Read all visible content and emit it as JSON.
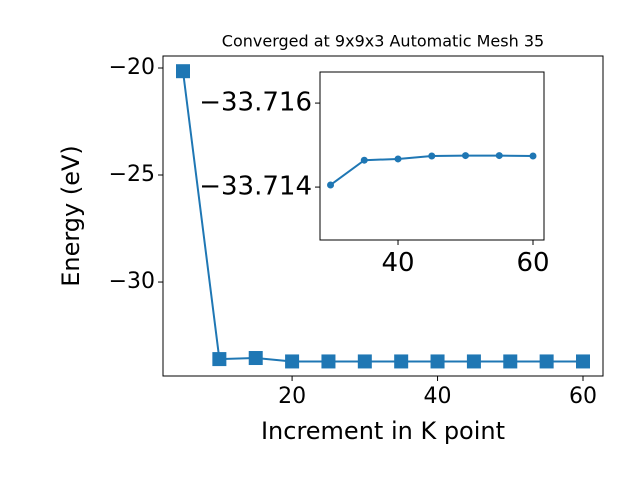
{
  "chart_data": [
    {
      "type": "line",
      "title": "Converged at 9x9x3 Automatic Mesh 35",
      "x_label": "Increment in K point",
      "y_label": "Energy (eV)",
      "x": [
        5,
        10,
        15,
        20,
        25,
        30,
        35,
        40,
        45,
        50,
        55,
        60
      ],
      "series": [
        {
          "color": "#1f77b4",
          "marker": "square",
          "values": [
            -20.15,
            -33.6,
            -33.55,
            -33.71,
            -33.71,
            -33.71,
            -33.71,
            -33.71,
            -33.71,
            -33.71,
            -33.71,
            -33.71
          ]
        }
      ],
      "xlim": [
        2.25,
        62.75
      ],
      "xticks": [
        20,
        40,
        60
      ],
      "ylim": [
        -34.39,
        -19.44
      ],
      "yticks": [
        {
          "value": -30,
          "label": "−30"
        },
        {
          "value": -25,
          "label": "−25"
        },
        {
          "value": -20,
          "label": "−20"
        }
      ]
    },
    {
      "type": "line",
      "x": [
        30,
        35,
        40,
        45,
        50,
        55,
        60
      ],
      "series": [
        {
          "color": "#1f77b4",
          "marker": "circle",
          "values": [
            -33.71405,
            -33.71464,
            -33.71467,
            -33.71474,
            -33.71475,
            -33.71475,
            -33.71474
          ]
        }
      ],
      "xlim": [
        28.44,
        61.63
      ],
      "xticks": [
        40,
        60
      ],
      "ylim": [
        -33.71274,
        -33.71674
      ],
      "yticks": [
        {
          "value": -33.716,
          "label": "−33.716"
        },
        {
          "value": -33.714,
          "label": "−33.714"
        }
      ]
    }
  ]
}
